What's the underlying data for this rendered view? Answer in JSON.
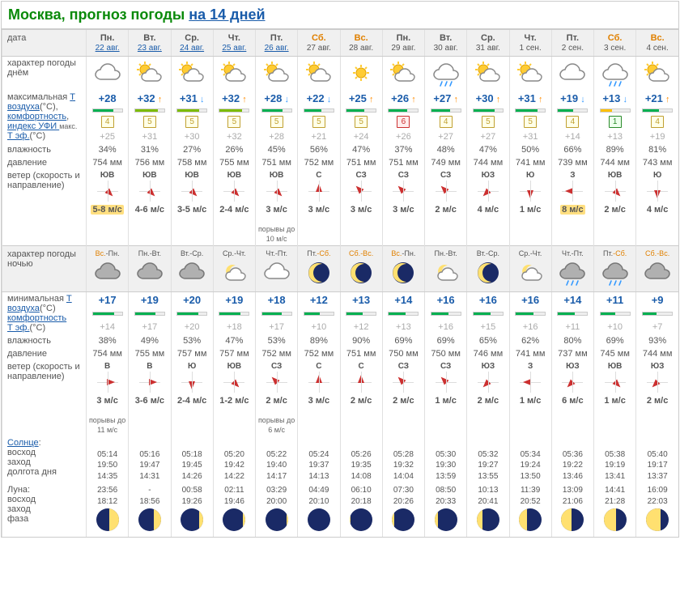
{
  "title": {
    "city": "Москва, прогноз погоды ",
    "link_text": "на 14 дней"
  },
  "row_labels": {
    "date": "дата",
    "day_char": "характер погоды днём",
    "tmax": "максимальная ",
    "t_air": "Т воздуха",
    "deg": "(°C),",
    "comfort": "комфортность",
    "uvi": "индекс УФИ ",
    "max": "макс.",
    "teff": "Т эф.",
    "deg2": "(°C)",
    "humidity": "влажность",
    "pressure": "давление",
    "wind": "ветер (скорость и направление)",
    "night_char": "характер погоды ночью",
    "tmin": "минимальная ",
    "sun": "Солнце",
    "sunrise": "восход",
    "sunset": "заход",
    "daylen": "долгота дня",
    "moon": "Луна:",
    "moonrise": "восход",
    "moonset": "заход",
    "phase": "фаза"
  },
  "days": [
    {
      "dow": "Пн.",
      "we": false,
      "date": "22 авг.",
      "link": true,
      "day_icon": "cloudy",
      "tmax": "+28",
      "tmax_trend": "",
      "comfort_pct": 70,
      "comfort_color": "#00b050",
      "uvi": "4",
      "uvi_cls": "",
      "teff_day": "+25",
      "hum_day": "34%",
      "press_day": "754 мм",
      "wdir_day": "ЮВ",
      "wrot_day": 135,
      "wspd_day": "5-8 м/с",
      "wspd_hl": true,
      "wextra_day": "",
      "night_trans": "Вс.-Пн.",
      "night_we1": true,
      "night_icon": "cloud-grey",
      "tmin": "+17",
      "tmin_trend": "",
      "comfort_n_pct": 74,
      "teff_night": "+14",
      "hum_night": "38%",
      "press_night": "754 мм",
      "wdir_night": "В",
      "wrot_night": 90,
      "wspd_night": "3 м/с",
      "wextra_night": "порывы до 11 м/с",
      "sunrise": "05:14",
      "sunset": "19:50",
      "daylen": "14:35",
      "moonrise": "23:56",
      "moonset": "18:12",
      "moon_lit": 40,
      "moon_side": "right"
    },
    {
      "dow": "Вт.",
      "we": false,
      "date": "23 авг.",
      "link": true,
      "day_icon": "partly",
      "tmax": "+32",
      "tmax_trend": "up",
      "comfort_pct": 78,
      "comfort_color": "#7cbb00",
      "uvi": "5",
      "uvi_cls": "",
      "teff_day": "+31",
      "hum_day": "31%",
      "press_day": "756 мм",
      "wdir_day": "ЮВ",
      "wrot_day": 135,
      "wspd_day": "4-6 м/с",
      "wspd_hl": false,
      "wextra_day": "",
      "night_trans": "Пн.-Вт.",
      "night_we1": false,
      "night_icon": "cloud-grey",
      "tmin": "+19",
      "tmin_trend": "",
      "comfort_n_pct": 70,
      "teff_night": "+17",
      "hum_night": "49%",
      "press_night": "755 мм",
      "wdir_night": "В",
      "wrot_night": 90,
      "wspd_night": "3-6 м/с",
      "wextra_night": "",
      "sunrise": "05:16",
      "sunset": "19:47",
      "daylen": "14:31",
      "moonrise": "-",
      "moonset": "18:56",
      "moon_lit": 30,
      "moon_side": "right"
    },
    {
      "dow": "Ср.",
      "we": false,
      "date": "24 авг.",
      "link": true,
      "day_icon": "partly",
      "tmax": "+31",
      "tmax_trend": "dn",
      "comfort_pct": 76,
      "comfort_color": "#7cbb00",
      "uvi": "5",
      "uvi_cls": "",
      "teff_day": "+30",
      "hum_day": "27%",
      "press_day": "758 мм",
      "wdir_day": "ЮВ",
      "wrot_day": 135,
      "wspd_day": "3-5 м/с",
      "wspd_hl": false,
      "wextra_day": "",
      "night_trans": "Вт.-Ср.",
      "night_we1": false,
      "night_icon": "cloud-grey",
      "tmin": "+20",
      "tmin_trend": "",
      "comfort_n_pct": 72,
      "teff_night": "+20",
      "hum_night": "53%",
      "press_night": "757 мм",
      "wdir_night": "Ю",
      "wrot_night": 180,
      "wspd_night": "2-4 м/с",
      "wextra_night": "",
      "sunrise": "05:18",
      "sunset": "19:45",
      "daylen": "14:26",
      "moonrise": "00:58",
      "moonset": "19:26",
      "moon_lit": 20,
      "moon_side": "right"
    },
    {
      "dow": "Чт.",
      "we": false,
      "date": "25 авг.",
      "link": true,
      "day_icon": "partly",
      "tmax": "+32",
      "tmax_trend": "up",
      "comfort_pct": 78,
      "comfort_color": "#7cbb00",
      "uvi": "5",
      "uvi_cls": "",
      "teff_day": "+32",
      "hum_day": "26%",
      "press_day": "755 мм",
      "wdir_day": "ЮВ",
      "wrot_day": 135,
      "wspd_day": "2-4 м/с",
      "wspd_hl": false,
      "wextra_day": "",
      "night_trans": "Ср.-Чт.",
      "night_we1": false,
      "night_icon": "moon-cloud",
      "tmin": "+19",
      "tmin_trend": "",
      "comfort_n_pct": 70,
      "teff_night": "+18",
      "hum_night": "47%",
      "press_night": "757 мм",
      "wdir_night": "ЮВ",
      "wrot_night": 135,
      "wspd_night": "1-2 м/с",
      "wextra_night": "",
      "sunrise": "05:20",
      "sunset": "19:42",
      "daylen": "14:22",
      "moonrise": "02:11",
      "moonset": "19:46",
      "moon_lit": 12,
      "moon_side": "right"
    },
    {
      "dow": "Пт.",
      "we": false,
      "date": "26 авг.",
      "link": true,
      "day_icon": "partly",
      "tmax": "+28",
      "tmax_trend": "dn",
      "comfort_pct": 70,
      "comfort_color": "#00b050",
      "uvi": "5",
      "uvi_cls": "",
      "teff_day": "+28",
      "hum_day": "45%",
      "press_day": "751 мм",
      "wdir_day": "ЮВ",
      "wrot_day": 135,
      "wspd_day": "3 м/с",
      "wspd_hl": false,
      "wextra_day": "порывы до 10 м/с",
      "night_trans": "Чт.-Пт.",
      "night_we1": false,
      "night_icon": "cloudy",
      "tmin": "+18",
      "tmin_trend": "",
      "comfort_n_pct": 68,
      "teff_night": "+17",
      "hum_night": "53%",
      "press_night": "752 мм",
      "wdir_night": "СЗ",
      "wrot_night": 315,
      "wspd_night": "2 м/с",
      "wextra_night": "порывы до 6 м/с",
      "sunrise": "05:22",
      "sunset": "19:40",
      "daylen": "14:17",
      "moonrise": "03:29",
      "moonset": "20:00",
      "moon_lit": 5,
      "moon_side": "right"
    },
    {
      "dow": "Сб.",
      "we": true,
      "date": "27 авг.",
      "link": false,
      "day_icon": "partly",
      "tmax": "+22",
      "tmax_trend": "dn",
      "comfort_pct": 58,
      "comfort_color": "#00b050",
      "uvi": "5",
      "uvi_cls": "",
      "teff_day": "+21",
      "hum_day": "56%",
      "press_day": "752 мм",
      "wdir_day": "С",
      "wrot_day": 0,
      "wspd_day": "3 м/с",
      "wspd_hl": false,
      "wextra_day": "",
      "night_trans": "Пт.-Сб.",
      "night_we1": false,
      "night_we2": true,
      "night_icon": "moon-clear",
      "tmin": "+12",
      "tmin_trend": "",
      "comfort_n_pct": 54,
      "teff_night": "+10",
      "hum_night": "89%",
      "press_night": "752 мм",
      "wdir_night": "С",
      "wrot_night": 0,
      "wspd_night": "3 м/с",
      "wextra_night": "",
      "sunrise": "05:24",
      "sunset": "19:37",
      "daylen": "14:13",
      "moonrise": "04:49",
      "moonset": "20:10",
      "moon_lit": 0,
      "moon_side": "right"
    },
    {
      "dow": "Вс.",
      "we": true,
      "date": "28 авг.",
      "link": false,
      "day_icon": "sunny",
      "tmax": "+25",
      "tmax_trend": "up",
      "comfort_pct": 62,
      "comfort_color": "#00b050",
      "uvi": "5",
      "uvi_cls": "",
      "teff_day": "+24",
      "hum_day": "47%",
      "press_day": "751 мм",
      "wdir_day": "СЗ",
      "wrot_day": 315,
      "wspd_day": "3 м/с",
      "wspd_hl": false,
      "wextra_day": "",
      "night_trans": "Сб.-Вс.",
      "night_we1": true,
      "night_we2": true,
      "night_icon": "moon-clear",
      "tmin": "+13",
      "tmin_trend": "",
      "comfort_n_pct": 54,
      "teff_night": "+12",
      "hum_night": "90%",
      "press_night": "751 мм",
      "wdir_night": "С",
      "wrot_night": 0,
      "wspd_night": "2 м/с",
      "wextra_night": "",
      "sunrise": "05:26",
      "sunset": "19:35",
      "daylen": "14:08",
      "moonrise": "06:10",
      "moonset": "20:18",
      "moon_lit": 3,
      "moon_side": "left"
    },
    {
      "dow": "Пн.",
      "we": false,
      "date": "29 авг.",
      "link": false,
      "day_icon": "partly",
      "tmax": "+26",
      "tmax_trend": "up",
      "comfort_pct": 64,
      "comfort_color": "#00b050",
      "uvi": "6",
      "uvi_cls": "red",
      "teff_day": "+26",
      "hum_day": "37%",
      "press_day": "751 мм",
      "wdir_day": "СЗ",
      "wrot_day": 315,
      "wspd_day": "3 м/с",
      "wspd_hl": false,
      "wextra_day": "",
      "night_trans": "Вс.-Пн.",
      "night_we1": true,
      "night_icon": "moon-clear",
      "tmin": "+14",
      "tmin_trend": "",
      "comfort_n_pct": 56,
      "teff_night": "+13",
      "hum_night": "69%",
      "press_night": "750 мм",
      "wdir_night": "СЗ",
      "wrot_night": 315,
      "wspd_night": "2 м/с",
      "wextra_night": "",
      "sunrise": "05:28",
      "sunset": "19:32",
      "daylen": "14:04",
      "moonrise": "07:30",
      "moonset": "20:26",
      "moon_lit": 8,
      "moon_side": "left"
    },
    {
      "dow": "Вт.",
      "we": false,
      "date": "30 авг.",
      "link": false,
      "day_icon": "rain",
      "tmax": "+27",
      "tmax_trend": "up",
      "comfort_pct": 66,
      "comfort_color": "#00b050",
      "uvi": "4",
      "uvi_cls": "",
      "teff_day": "+27",
      "hum_day": "48%",
      "press_day": "749 мм",
      "wdir_day": "СЗ",
      "wrot_day": 315,
      "wspd_day": "2 м/с",
      "wspd_hl": false,
      "wextra_day": "",
      "night_trans": "Пн.-Вт.",
      "night_we1": false,
      "night_icon": "moon-cloud",
      "tmin": "+16",
      "tmin_trend": "",
      "comfort_n_pct": 60,
      "teff_night": "+16",
      "hum_night": "69%",
      "press_night": "750 мм",
      "wdir_night": "СЗ",
      "wrot_night": 315,
      "wspd_night": "1 м/с",
      "wextra_night": "",
      "sunrise": "05:30",
      "sunset": "19:30",
      "daylen": "13:59",
      "moonrise": "08:50",
      "moonset": "20:33",
      "moon_lit": 15,
      "moon_side": "left"
    },
    {
      "dow": "Ср.",
      "we": false,
      "date": "31 авг.",
      "link": false,
      "day_icon": "partly",
      "tmax": "+30",
      "tmax_trend": "up",
      "comfort_pct": 72,
      "comfort_color": "#00b050",
      "uvi": "5",
      "uvi_cls": "",
      "teff_day": "+27",
      "hum_day": "47%",
      "press_day": "744 мм",
      "wdir_day": "ЮЗ",
      "wrot_day": 225,
      "wspd_day": "4 м/с",
      "wspd_hl": false,
      "wextra_day": "",
      "night_trans": "Вт.-Ср.",
      "night_we1": false,
      "night_icon": "moon-clear",
      "tmin": "+16",
      "tmin_trend": "",
      "comfort_n_pct": 60,
      "teff_night": "+15",
      "hum_night": "65%",
      "press_night": "746 мм",
      "wdir_night": "ЮЗ",
      "wrot_night": 225,
      "wspd_night": "2 м/с",
      "wextra_night": "",
      "sunrise": "05:32",
      "sunset": "19:27",
      "daylen": "13:55",
      "moonrise": "10:13",
      "moonset": "20:41",
      "moon_lit": 25,
      "moon_side": "left"
    },
    {
      "dow": "Чт.",
      "we": false,
      "date": "1 сен.",
      "link": false,
      "day_icon": "partly",
      "tmax": "+31",
      "tmax_trend": "up",
      "comfort_pct": 74,
      "comfort_color": "#00b050",
      "uvi": "5",
      "uvi_cls": "",
      "teff_day": "+31",
      "hum_day": "50%",
      "press_day": "741 мм",
      "wdir_day": "Ю",
      "wrot_day": 180,
      "wspd_day": "1 м/с",
      "wspd_hl": false,
      "wextra_day": "",
      "night_trans": "Ср.-Чт.",
      "night_we1": false,
      "night_icon": "moon-cloud",
      "tmin": "+16",
      "tmin_trend": "",
      "comfort_n_pct": 60,
      "teff_night": "+16",
      "hum_night": "62%",
      "press_night": "741 мм",
      "wdir_night": "З",
      "wrot_night": 270,
      "wspd_night": "1 м/с",
      "wextra_night": "",
      "sunrise": "05:34",
      "sunset": "19:24",
      "daylen": "13:50",
      "moonrise": "11:39",
      "moonset": "20:52",
      "moon_lit": 35,
      "moon_side": "left"
    },
    {
      "dow": "Пт.",
      "we": false,
      "date": "2 сен.",
      "link": false,
      "day_icon": "cloudy",
      "tmax": "+19",
      "tmax_trend": "dn",
      "comfort_pct": 52,
      "comfort_color": "#00b050",
      "uvi": "4",
      "uvi_cls": "",
      "teff_day": "+14",
      "hum_day": "66%",
      "press_day": "739 мм",
      "wdir_day": "З",
      "wrot_day": 270,
      "wspd_day": "8 м/с",
      "wspd_hl": true,
      "wextra_day": "",
      "night_trans": "Чт.-Пт.",
      "night_we1": false,
      "night_icon": "rain-cloud",
      "tmin": "+14",
      "tmin_trend": "",
      "comfort_n_pct": 56,
      "teff_night": "+11",
      "hum_night": "80%",
      "press_night": "737 мм",
      "wdir_night": "ЮЗ",
      "wrot_night": 225,
      "wspd_night": "6 м/с",
      "wextra_night": "",
      "sunrise": "05:36",
      "sunset": "19:22",
      "daylen": "13:46",
      "moonrise": "13:09",
      "moonset": "21:06",
      "moon_lit": 45,
      "moon_side": "left"
    },
    {
      "dow": "Сб.",
      "we": true,
      "date": "3 сен.",
      "link": false,
      "day_icon": "rain",
      "tmax": "+13",
      "tmax_trend": "dn",
      "comfort_pct": 40,
      "comfort_color": "#ffc000",
      "uvi": "1",
      "uvi_cls": "green",
      "teff_day": "+13",
      "hum_day": "89%",
      "press_day": "744 мм",
      "wdir_day": "ЮВ",
      "wrot_day": 135,
      "wspd_day": "2 м/с",
      "wspd_hl": false,
      "wextra_day": "",
      "night_trans": "Пт.-Сб.",
      "night_we1": false,
      "night_we2": true,
      "night_icon": "rain-cloud",
      "tmin": "+11",
      "tmin_trend": "",
      "comfort_n_pct": 50,
      "teff_night": "+10",
      "hum_night": "69%",
      "press_night": "745 мм",
      "wdir_night": "ЮВ",
      "wrot_night": 135,
      "wspd_night": "1 м/с",
      "wextra_night": "",
      "sunrise": "05:38",
      "sunset": "19:19",
      "daylen": "13:41",
      "moonrise": "14:41",
      "moonset": "21:28",
      "moon_lit": 55,
      "moon_side": "left"
    },
    {
      "dow": "Вс.",
      "we": true,
      "date": "4 сен.",
      "link": false,
      "day_icon": "partly",
      "tmax": "+21",
      "tmax_trend": "up",
      "comfort_pct": 56,
      "comfort_color": "#00b050",
      "uvi": "4",
      "uvi_cls": "",
      "teff_day": "+19",
      "hum_day": "81%",
      "press_day": "743 мм",
      "wdir_day": "Ю",
      "wrot_day": 180,
      "wspd_day": "4 м/с",
      "wspd_hl": false,
      "wextra_day": "",
      "night_trans": "Сб.-Вс.",
      "night_we1": true,
      "night_we2": true,
      "night_icon": "cloud-grey",
      "tmin": "+9",
      "tmin_trend": "",
      "comfort_n_pct": 46,
      "teff_night": "+7",
      "hum_night": "93%",
      "press_night": "744 мм",
      "wdir_night": "ЮЗ",
      "wrot_night": 225,
      "wspd_night": "2 м/с",
      "wextra_night": "",
      "sunrise": "05:40",
      "sunset": "19:17",
      "daylen": "13:37",
      "moonrise": "16:09",
      "moonset": "22:03",
      "moon_lit": 65,
      "moon_side": "left"
    }
  ]
}
